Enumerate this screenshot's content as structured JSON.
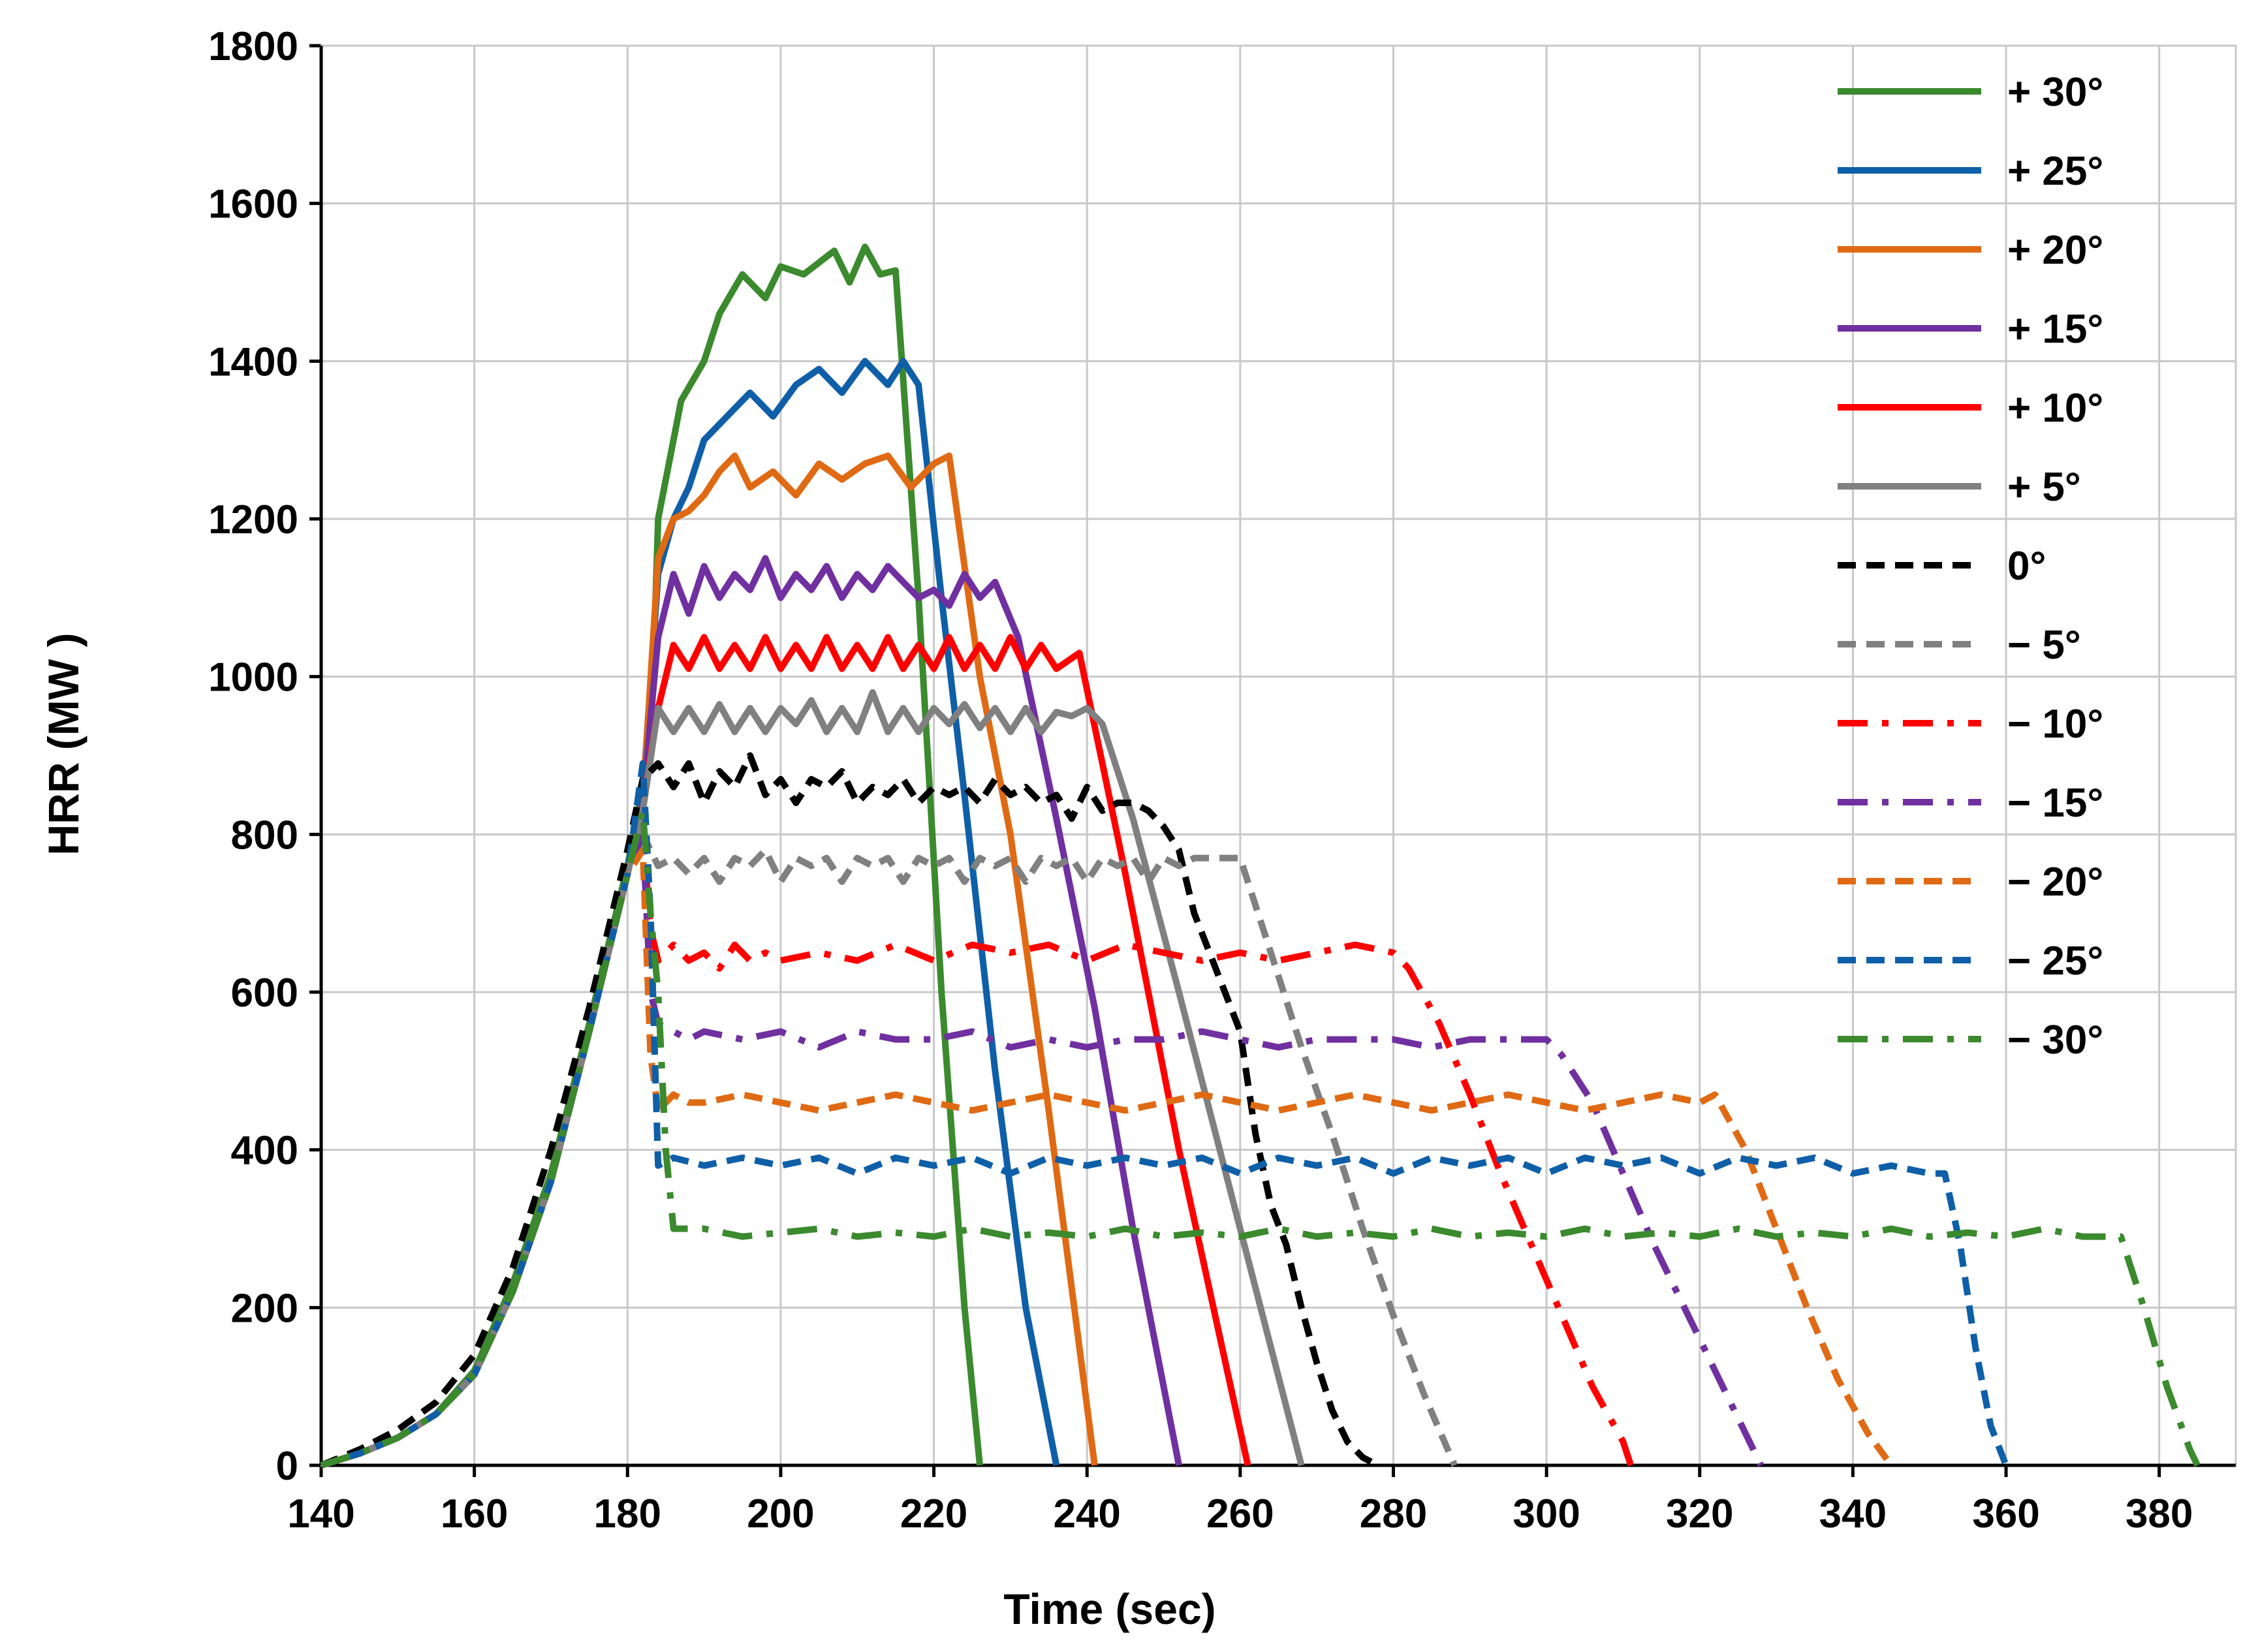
{
  "chart_data": {
    "type": "line",
    "title": "",
    "xlabel": "Time (sec)",
    "ylabel": "HRR (MW )",
    "xlim": [
      140,
      390
    ],
    "ylim": [
      0,
      1800
    ],
    "xticks": [
      "140",
      "160",
      "180",
      "200",
      "220",
      "240",
      "260",
      "280",
      "300",
      "320",
      "340",
      "360",
      "380"
    ],
    "yticks": [
      "0",
      "200",
      "400",
      "600",
      "800",
      "1000",
      "1200",
      "1400",
      "1600",
      "1800"
    ],
    "grid": true,
    "legend_position": "top-right",
    "series": [
      {
        "name": "+ 30°",
        "color": "#3b8a2e",
        "dash": "solid",
        "x": [
          140,
          145,
          150,
          155,
          160,
          165,
          170,
          175,
          180,
          182,
          183,
          184,
          186,
          187,
          190,
          192,
          195,
          198,
          200,
          203,
          205,
          207,
          209,
          211,
          213,
          215,
          218,
          221,
          224,
          226
        ],
        "y": [
          0,
          15,
          35,
          65,
          120,
          230,
          370,
          560,
          760,
          860,
          900,
          1200,
          1300,
          1350,
          1400,
          1460,
          1510,
          1480,
          1520,
          1510,
          1525,
          1540,
          1500,
          1545,
          1510,
          1515,
          1100,
          600,
          200,
          0
        ]
      },
      {
        "name": "+ 25°",
        "color": "#0f5fa8",
        "dash": "solid",
        "x": [
          140,
          145,
          150,
          155,
          160,
          165,
          170,
          175,
          180,
          182,
          184,
          186,
          188,
          190,
          193,
          196,
          199,
          202,
          205,
          208,
          211,
          214,
          216,
          218,
          221,
          224,
          228,
          232,
          236
        ],
        "y": [
          0,
          15,
          35,
          65,
          115,
          220,
          360,
          550,
          750,
          850,
          1130,
          1200,
          1240,
          1300,
          1330,
          1360,
          1330,
          1370,
          1390,
          1360,
          1400,
          1370,
          1400,
          1370,
          1100,
          850,
          500,
          200,
          0
        ]
      },
      {
        "name": "+ 20°",
        "color": "#e06a14",
        "dash": "solid",
        "x": [
          140,
          145,
          150,
          155,
          160,
          165,
          170,
          175,
          180,
          182,
          184,
          186,
          188,
          190,
          192,
          194,
          196,
          199,
          202,
          205,
          208,
          211,
          214,
          217,
          220,
          222,
          226,
          230,
          235,
          241
        ],
        "y": [
          0,
          15,
          35,
          65,
          115,
          220,
          360,
          550,
          750,
          840,
          1150,
          1200,
          1210,
          1230,
          1260,
          1280,
          1240,
          1260,
          1230,
          1270,
          1250,
          1270,
          1280,
          1240,
          1270,
          1280,
          1000,
          800,
          450,
          0
        ]
      },
      {
        "name": "+ 15°",
        "color": "#7030a0",
        "dash": "solid",
        "x": [
          140,
          145,
          150,
          155,
          160,
          165,
          170,
          175,
          180,
          182,
          184,
          186,
          188,
          190,
          192,
          194,
          196,
          198,
          200,
          202,
          204,
          206,
          208,
          210,
          212,
          214,
          216,
          218,
          220,
          222,
          224,
          226,
          228,
          231,
          236,
          241,
          246,
          252
        ],
        "y": [
          0,
          15,
          35,
          65,
          115,
          220,
          360,
          550,
          750,
          840,
          1050,
          1130,
          1080,
          1140,
          1100,
          1130,
          1110,
          1150,
          1100,
          1130,
          1110,
          1140,
          1100,
          1130,
          1110,
          1140,
          1120,
          1100,
          1110,
          1090,
          1130,
          1100,
          1120,
          1050,
          820,
          580,
          300,
          0
        ]
      },
      {
        "name": "+ 10°",
        "color": "#ff0000",
        "dash": "solid",
        "x": [
          140,
          145,
          150,
          155,
          160,
          165,
          170,
          175,
          180,
          182,
          184,
          186,
          188,
          190,
          192,
          194,
          196,
          198,
          200,
          202,
          204,
          206,
          208,
          210,
          212,
          214,
          216,
          218,
          220,
          222,
          224,
          226,
          228,
          230,
          232,
          234,
          236,
          239,
          245,
          252,
          261
        ],
        "y": [
          0,
          15,
          35,
          65,
          115,
          220,
          360,
          550,
          750,
          840,
          960,
          1040,
          1010,
          1050,
          1010,
          1040,
          1010,
          1050,
          1010,
          1040,
          1010,
          1050,
          1010,
          1040,
          1010,
          1050,
          1010,
          1040,
          1010,
          1050,
          1010,
          1040,
          1010,
          1050,
          1010,
          1040,
          1010,
          1030,
          750,
          400,
          0
        ]
      },
      {
        "name": "+ 5°",
        "color": "#808080",
        "dash": "solid",
        "x": [
          140,
          145,
          150,
          155,
          160,
          165,
          170,
          175,
          180,
          182,
          184,
          186,
          188,
          190,
          192,
          194,
          196,
          198,
          200,
          202,
          204,
          206,
          208,
          210,
          212,
          214,
          216,
          218,
          220,
          222,
          224,
          226,
          228,
          230,
          232,
          234,
          236,
          238,
          240,
          242,
          246,
          252,
          260,
          268
        ],
        "y": [
          0,
          15,
          35,
          65,
          115,
          220,
          360,
          550,
          750,
          830,
          960,
          930,
          960,
          930,
          965,
          930,
          960,
          930,
          960,
          940,
          970,
          930,
          960,
          930,
          980,
          930,
          960,
          930,
          960,
          940,
          965,
          935,
          960,
          930,
          960,
          930,
          955,
          950,
          960,
          940,
          820,
          600,
          300,
          0
        ]
      },
      {
        "name": "0°",
        "color": "#000000",
        "dash": "dash",
        "x": [
          140,
          145,
          150,
          155,
          160,
          165,
          170,
          175,
          180,
          182,
          184,
          186,
          188,
          190,
          192,
          194,
          196,
          198,
          200,
          202,
          204,
          206,
          208,
          210,
          212,
          214,
          216,
          218,
          220,
          222,
          224,
          226,
          228,
          230,
          232,
          234,
          236,
          238,
          240,
          242,
          244,
          246,
          248,
          250,
          252,
          254,
          256,
          258,
          260,
          262,
          264,
          266,
          268,
          270,
          272,
          274,
          276,
          278
        ],
        "y": [
          0,
          20,
          45,
          80,
          140,
          250,
          400,
          580,
          780,
          870,
          890,
          860,
          890,
          840,
          880,
          860,
          900,
          850,
          870,
          840,
          870,
          860,
          880,
          840,
          860,
          850,
          870,
          840,
          860,
          850,
          860,
          840,
          870,
          850,
          860,
          840,
          850,
          820,
          860,
          830,
          840,
          840,
          830,
          810,
          780,
          700,
          650,
          600,
          550,
          420,
          330,
          280,
          200,
          130,
          70,
          30,
          10,
          0
        ]
      },
      {
        "name": "− 5°",
        "color": "#808080",
        "dash": "dash",
        "x": [
          140,
          145,
          150,
          155,
          160,
          165,
          170,
          175,
          180,
          182,
          184,
          186,
          188,
          190,
          192,
          194,
          196,
          198,
          200,
          202,
          204,
          206,
          208,
          210,
          212,
          214,
          216,
          218,
          220,
          222,
          224,
          226,
          228,
          230,
          232,
          234,
          236,
          238,
          240,
          242,
          244,
          246,
          248,
          250,
          252,
          254,
          256,
          258,
          260,
          264,
          268,
          272,
          276,
          280,
          284,
          288
        ],
        "y": [
          0,
          15,
          35,
          65,
          115,
          220,
          360,
          550,
          750,
          800,
          760,
          770,
          750,
          770,
          740,
          770,
          760,
          780,
          740,
          770,
          760,
          770,
          740,
          770,
          760,
          770,
          740,
          770,
          760,
          770,
          740,
          770,
          760,
          770,
          740,
          770,
          760,
          770,
          740,
          770,
          760,
          770,
          740,
          770,
          760,
          770,
          770,
          770,
          770,
          650,
          530,
          420,
          300,
          190,
          90,
          0
        ]
      },
      {
        "name": "− 10°",
        "color": "#ff0000",
        "dash": "dashdot",
        "x": [
          140,
          145,
          150,
          155,
          160,
          165,
          170,
          175,
          180,
          182,
          183,
          184,
          186,
          188,
          190,
          192,
          194,
          196,
          198,
          200,
          205,
          210,
          215,
          220,
          225,
          230,
          235,
          240,
          245,
          250,
          255,
          260,
          265,
          270,
          275,
          280,
          282,
          286,
          290,
          294,
          298,
          302,
          306,
          310,
          311
        ],
        "y": [
          0,
          15,
          35,
          65,
          115,
          220,
          360,
          550,
          750,
          800,
          680,
          640,
          660,
          640,
          650,
          630,
          660,
          640,
          650,
          640,
          650,
          640,
          660,
          640,
          660,
          650,
          660,
          640,
          660,
          650,
          640,
          650,
          640,
          650,
          660,
          650,
          630,
          560,
          470,
          370,
          280,
          190,
          100,
          30,
          0
        ]
      },
      {
        "name": "− 15°",
        "color": "#7030a0",
        "dash": "dashdot",
        "x": [
          140,
          145,
          150,
          155,
          160,
          165,
          170,
          175,
          180,
          182,
          183,
          184,
          186,
          188,
          190,
          195,
          200,
          205,
          210,
          215,
          220,
          225,
          230,
          235,
          240,
          245,
          250,
          255,
          260,
          265,
          270,
          275,
          280,
          285,
          290,
          295,
          300,
          302,
          306,
          310,
          314,
          318,
          322,
          326,
          328
        ],
        "y": [
          0,
          15,
          35,
          65,
          115,
          220,
          360,
          550,
          750,
          800,
          600,
          560,
          550,
          540,
          550,
          540,
          550,
          530,
          550,
          540,
          540,
          550,
          530,
          540,
          530,
          540,
          540,
          550,
          540,
          530,
          540,
          540,
          540,
          530,
          540,
          540,
          540,
          520,
          460,
          370,
          280,
          200,
          120,
          40,
          0
        ]
      },
      {
        "name": "− 20°",
        "color": "#e06a14",
        "dash": "dash",
        "x": [
          140,
          145,
          150,
          155,
          160,
          165,
          170,
          175,
          180,
          182,
          183,
          184,
          186,
          188,
          190,
          195,
          200,
          205,
          210,
          215,
          220,
          225,
          230,
          235,
          240,
          245,
          250,
          255,
          260,
          265,
          270,
          275,
          280,
          285,
          290,
          295,
          300,
          305,
          310,
          315,
          320,
          322,
          326,
          330,
          334,
          338,
          342,
          345
        ],
        "y": [
          0,
          15,
          35,
          65,
          115,
          220,
          360,
          550,
          750,
          780,
          520,
          450,
          470,
          460,
          460,
          470,
          460,
          450,
          460,
          470,
          460,
          450,
          460,
          470,
          460,
          450,
          460,
          470,
          460,
          450,
          460,
          470,
          460,
          450,
          460,
          470,
          460,
          450,
          460,
          470,
          460,
          470,
          400,
          300,
          200,
          110,
          40,
          0
        ]
      },
      {
        "name": "− 25°",
        "color": "#0f5fa8",
        "dash": "dash",
        "x": [
          140,
          145,
          150,
          155,
          160,
          165,
          170,
          175,
          180,
          182,
          183,
          184,
          186,
          190,
          195,
          200,
          205,
          210,
          215,
          220,
          225,
          230,
          235,
          240,
          245,
          250,
          255,
          260,
          265,
          270,
          275,
          280,
          285,
          290,
          295,
          300,
          305,
          310,
          315,
          320,
          325,
          330,
          335,
          340,
          345,
          350,
          352,
          354,
          356,
          358,
          360
        ],
        "y": [
          0,
          15,
          35,
          65,
          115,
          220,
          360,
          550,
          750,
          890,
          700,
          380,
          390,
          380,
          390,
          380,
          390,
          370,
          390,
          380,
          390,
          370,
          390,
          380,
          390,
          380,
          390,
          370,
          390,
          380,
          390,
          370,
          390,
          380,
          390,
          370,
          390,
          380,
          390,
          370,
          390,
          380,
          390,
          370,
          380,
          370,
          370,
          280,
          150,
          50,
          0
        ]
      },
      {
        "name": "− 30°",
        "color": "#3b8a2e",
        "dash": "dashdot",
        "x": [
          140,
          145,
          150,
          155,
          160,
          165,
          170,
          175,
          180,
          182,
          183,
          184,
          185,
          186,
          190,
          195,
          200,
          205,
          210,
          215,
          220,
          225,
          230,
          235,
          240,
          245,
          250,
          255,
          260,
          265,
          270,
          275,
          280,
          285,
          290,
          295,
          300,
          305,
          310,
          315,
          320,
          325,
          330,
          335,
          340,
          345,
          350,
          355,
          360,
          365,
          370,
          375,
          378,
          381,
          384,
          385
        ],
        "y": [
          0,
          15,
          35,
          65,
          115,
          220,
          360,
          550,
          750,
          830,
          700,
          600,
          400,
          300,
          300,
          290,
          295,
          300,
          290,
          295,
          290,
          300,
          290,
          295,
          290,
          300,
          290,
          295,
          290,
          300,
          290,
          295,
          290,
          300,
          290,
          295,
          290,
          300,
          290,
          295,
          290,
          300,
          290,
          295,
          290,
          300,
          290,
          295,
          290,
          300,
          290,
          290,
          200,
          100,
          20,
          0
        ]
      }
    ]
  }
}
